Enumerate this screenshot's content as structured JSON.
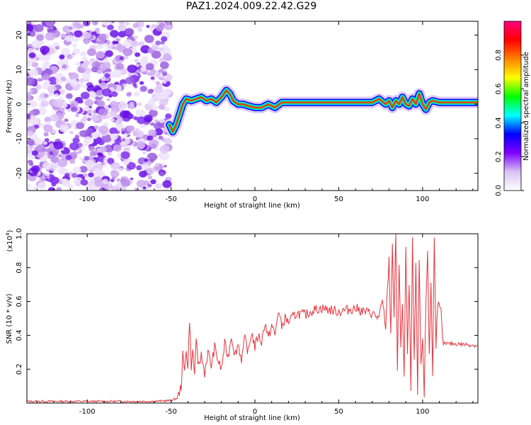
{
  "title": "PAZ1.2024.009.22.42.G29",
  "spectrogram": {
    "xlabel": "Height of straight line (km)",
    "ylabel": "Frequency (Hz)",
    "xlim": [
      -136,
      133
    ],
    "ylim": [
      -25,
      24
    ],
    "xticks": [
      -100,
      -50,
      0,
      50,
      100
    ],
    "yticks": [
      -20,
      -10,
      0,
      10,
      20
    ],
    "noise_region_end_km": -51,
    "signal_track": {
      "x": [
        -51,
        -49,
        -47,
        -45,
        -43,
        -41,
        -38,
        -35,
        -32,
        -29,
        -26,
        -23,
        -20,
        -17,
        -15,
        -13,
        -10,
        -7,
        -4,
        0,
        4,
        8,
        12,
        16,
        20,
        30,
        40,
        50,
        60,
        70,
        74,
        78,
        80,
        82,
        84,
        86,
        88,
        90,
        92,
        94,
        96,
        98,
        100,
        102,
        104,
        106,
        110,
        120,
        133
      ],
      "y": [
        -6,
        -8,
        -6,
        -3,
        0,
        1.5,
        1,
        1.5,
        2,
        1,
        1.5,
        0.5,
        2,
        4,
        3,
        1,
        0,
        0,
        -0.5,
        -1,
        -1,
        0,
        -1,
        0.5,
        0.5,
        0.5,
        0.5,
        0.5,
        0.5,
        0.5,
        1.5,
        0,
        1,
        -1,
        1,
        0,
        2,
        0,
        -0.5,
        1.5,
        0,
        3,
        0,
        -1.5,
        0.5,
        1,
        0.5,
        0.5,
        0.5
      ]
    }
  },
  "colorbar": {
    "label": "Normalized spectral amplitude",
    "range": [
      0.0,
      1.0
    ],
    "ticks": [
      "0.0",
      "0.2",
      "0.4",
      "0.6",
      "0.8"
    ],
    "colors": [
      "#ffffff",
      "#d9c2f2",
      "#8000ff",
      "#0000ff",
      "#00ffff",
      "#00ff00",
      "#ffff00",
      "#ff8000",
      "#ff0000",
      "#ff0080"
    ]
  },
  "chart_data": {
    "type": "line",
    "xlabel": "Height of straight line (km)",
    "ylabel": "SNR (10 * v/v)",
    "multiplier": "(x10",
    "multiplier_exp": "4",
    "xlim": [
      -136,
      133
    ],
    "ylim": [
      0,
      1.0
    ],
    "xticks": [
      -100,
      -50,
      0,
      50,
      100
    ],
    "yticks": [
      "0.2",
      "0.4",
      "0.6",
      "0.8",
      "1.0"
    ],
    "series": [
      {
        "color": "#e8323c",
        "x": [
          -136,
          -120,
          -100,
          -80,
          -60,
          -50,
          -46,
          -44,
          -43,
          -42,
          -41,
          -40,
          -39,
          -38,
          -37,
          -36,
          -35,
          -34,
          -32,
          -30,
          -28,
          -26,
          -24,
          -22,
          -20,
          -18,
          -16,
          -14,
          -12,
          -10,
          -8,
          -6,
          -4,
          -2,
          0,
          2,
          4,
          6,
          8,
          10,
          12,
          14,
          16,
          18,
          20,
          25,
          30,
          35,
          40,
          45,
          50,
          55,
          60,
          65,
          70,
          74,
          76,
          78,
          80,
          81,
          82,
          83,
          84,
          85,
          86,
          87,
          88,
          89,
          90,
          91,
          92,
          93,
          94,
          95,
          96,
          97,
          98,
          99,
          100,
          101,
          102,
          103,
          104,
          105,
          106,
          107,
          108,
          109,
          110,
          111,
          112,
          115,
          120,
          133
        ],
        "y": [
          0.01,
          0.01,
          0.01,
          0.01,
          0.01,
          0.015,
          0.03,
          0.1,
          0.28,
          0.18,
          0.33,
          0.2,
          0.5,
          0.22,
          0.3,
          0.17,
          0.4,
          0.2,
          0.28,
          0.18,
          0.3,
          0.22,
          0.33,
          0.25,
          0.2,
          0.35,
          0.27,
          0.4,
          0.28,
          0.35,
          0.26,
          0.38,
          0.3,
          0.42,
          0.33,
          0.4,
          0.36,
          0.48,
          0.38,
          0.46,
          0.4,
          0.55,
          0.45,
          0.5,
          0.48,
          0.53,
          0.52,
          0.55,
          0.56,
          0.55,
          0.54,
          0.55,
          0.56,
          0.54,
          0.53,
          0.5,
          0.6,
          0.45,
          0.85,
          0.4,
          0.95,
          0.5,
          1.0,
          0.2,
          0.8,
          0.35,
          0.6,
          0.15,
          0.9,
          0.3,
          0.7,
          0.1,
          0.95,
          0.25,
          0.8,
          0.05,
          0.85,
          0.2,
          0.4,
          0.05,
          0.6,
          0.9,
          0.3,
          0.7,
          0.15,
          1.0,
          0.35,
          0.6,
          0.55,
          0.54,
          0.35,
          0.35,
          0.35,
          0.34
        ]
      }
    ]
  }
}
